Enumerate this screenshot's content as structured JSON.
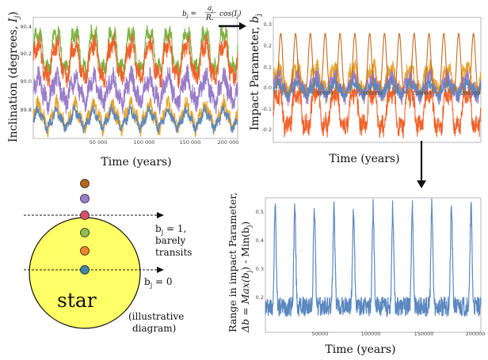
{
  "chart_data": [
    {
      "type": "line",
      "ylabel": "Inclination (degrees, I_j)",
      "xlabel": "Time (years)",
      "xlim": [
        0,
        200000
      ],
      "ylim": [
        89.7,
        90.45
      ],
      "x_ticks": [
        "50 000",
        "100 000",
        "150 000",
        "200 000"
      ],
      "y_ticks": [
        "89.8",
        "90.0",
        "90.2",
        "90.4"
      ],
      "cycles": 11,
      "series": [
        {
          "color": "#7cb342",
          "center": 90.24,
          "amplitude": 0.15,
          "noise": 0.05
        },
        {
          "color": "#f0632b",
          "center": 90.18,
          "amplitude": 0.13,
          "noise": 0.06
        },
        {
          "color": "#9a7cc9",
          "center": 90.0,
          "amplitude": 0.09,
          "noise": 0.07
        },
        {
          "color": "#e8a42a",
          "center": 89.84,
          "amplitude": 0.08,
          "noise": 0.05
        },
        {
          "color": "#5b88c0",
          "center": 89.82,
          "amplitude": 0.06,
          "noise": 0.03
        }
      ]
    },
    {
      "type": "line",
      "ylabel": "Impact Parameter, b_j",
      "xlabel": "Time (years)",
      "xlim": [
        0,
        200000
      ],
      "ylim": [
        -0.26,
        0.32
      ],
      "x_ticks": [
        "50000",
        "100000",
        "150000",
        "200000"
      ],
      "y_ticks": [
        "-0.2",
        "-0.1",
        "0.0",
        "0.1",
        "0.2",
        "0.3"
      ],
      "series": [
        {
          "color": "#f0632b",
          "center": -0.11,
          "amplitude": 0.11,
          "noise": 0.05
        },
        {
          "color": "#e8a42a",
          "center": 0.03,
          "amplitude": 0.07,
          "noise": 0.04
        },
        {
          "color": "#9a7cc9",
          "center": 0.0,
          "amplitude": 0.05,
          "noise": 0.04
        },
        {
          "color": "#5b88c0",
          "center": -0.01,
          "amplitude": 0.03,
          "noise": 0.03
        },
        {
          "color": "#c56a1f",
          "center": 0.04,
          "amplitude": 0.23,
          "noise": 0.0
        }
      ]
    },
    {
      "type": "line",
      "ylabel": "Range in impact Parameter, Δb = Max(b_j) - Min(b_j)",
      "xlabel": "Time (years)",
      "xlim": [
        0,
        200000
      ],
      "ylim": [
        0.12,
        0.54
      ],
      "x_ticks": [
        "50000",
        "100000",
        "150000",
        "200000"
      ],
      "y_ticks": [
        "0.2",
        "0.3",
        "0.4",
        "0.5"
      ],
      "cycles": 11,
      "series": [
        {
          "color": "#5b88c0",
          "baseline": 0.2,
          "peak": 0.51,
          "noise": 0.03
        }
      ]
    }
  ],
  "labels": {
    "panel1_ylabel_main": "Inclination (degrees, ",
    "panel1_ylabel_sym": "I",
    "panel1_ylabel_sub": "j",
    "panel1_ylabel_end": ")",
    "panel1_xlabel": "Time (years)",
    "panel2_ylabel_main": "Impact Parameter, ",
    "panel2_ylabel_sym": "b",
    "panel2_ylabel_sub": "j",
    "panel2_xlabel": "Time (years)",
    "panel3_ylabel_line1": "Range in impact Parameter,",
    "panel3_ylabel_line2": "Δb = Max(b",
    "panel3_ylabel_line2_sub": "j",
    "panel3_ylabel_line2_mid": ") - Min(b",
    "panel3_ylabel_line2_sub2": "j",
    "panel3_ylabel_line2_end": ")",
    "panel3_xlabel": "Time (years)",
    "formula": "b_j = (a_j / R_*) cos(I_j)",
    "formula_lhs": "b",
    "formula_lhs_sub": "j",
    "formula_eq": " = ",
    "formula_num": "a",
    "formula_num_sub": "j",
    "formula_den": "R",
    "formula_den_sub": "*",
    "formula_rhs": "cos(I",
    "formula_rhs_sub": "j",
    "formula_rhs_end": ")",
    "b1_line1_pre": "b",
    "b1_line1_sub": "j",
    "b1_line1_post": " = 1,",
    "b1_line2": "barely",
    "b1_line3": "transits",
    "b0_pre": "b",
    "b0_sub": "j",
    "b0_post": " = 0",
    "star": "star",
    "illustrative_line1": "(illustrative",
    "illustrative_line2": "diagram)"
  },
  "diagram": {
    "star_color": "#ffff66",
    "planet_colors": [
      "#b8651b",
      "#9a7cc9",
      "#d94f6a",
      "#8cc152",
      "#f0852b",
      "#3f86a8"
    ]
  }
}
